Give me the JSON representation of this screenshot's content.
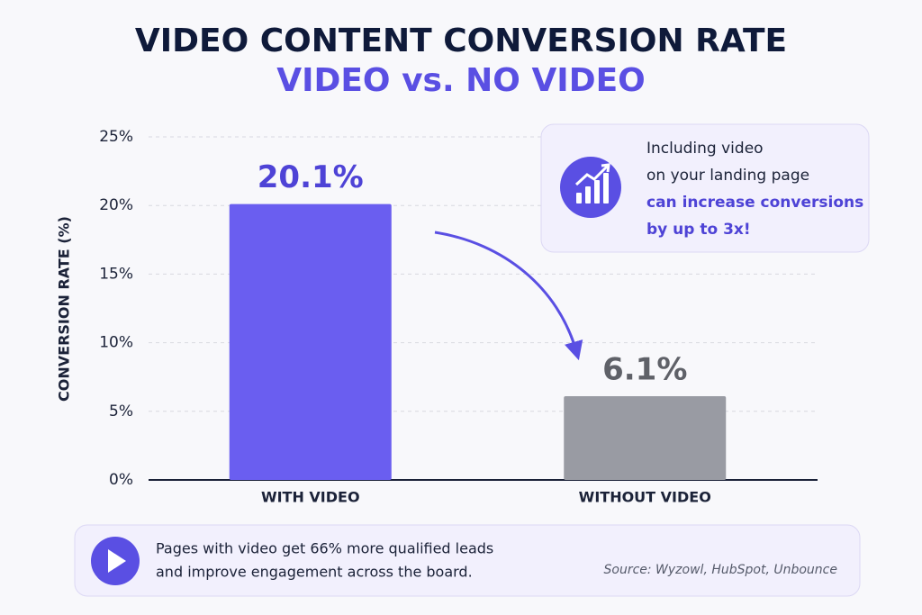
{
  "chart_data": {
    "type": "bar",
    "title": "VIDEO CONTENT CONVERSION RATE",
    "subtitle": "VIDEO vs. NO VIDEO",
    "y_label": "CONVERSION RATE (%)",
    "categories": [
      "WITH VIDEO",
      "WITHOUT VIDEO"
    ],
    "values": [
      20.1,
      6.1
    ],
    "value_labels": [
      "20.1%",
      "6.1%"
    ],
    "colors": [
      "#6a5ef0",
      "#999ba3"
    ],
    "ylim": [
      0,
      25
    ],
    "yticks": [
      {
        "value": 0,
        "label": "0%"
      },
      {
        "value": 5,
        "label": "5%"
      },
      {
        "value": 10,
        "label": "10%"
      },
      {
        "value": 15,
        "label": "15%"
      },
      {
        "value": 20,
        "label": "20%"
      },
      {
        "value": 25,
        "label": "25%"
      }
    ],
    "grid": true,
    "callout": {
      "lines": [
        "Including video",
        "on your landing page"
      ],
      "highlight": [
        "can increase conversions",
        "by up to 3x!"
      ]
    },
    "footer": {
      "lines": [
        "Pages with video get 66% more qualified leads",
        "and improve engagement across the board."
      ],
      "source": "Source: Wyzowl, HubSpot, Unbounce"
    }
  }
}
